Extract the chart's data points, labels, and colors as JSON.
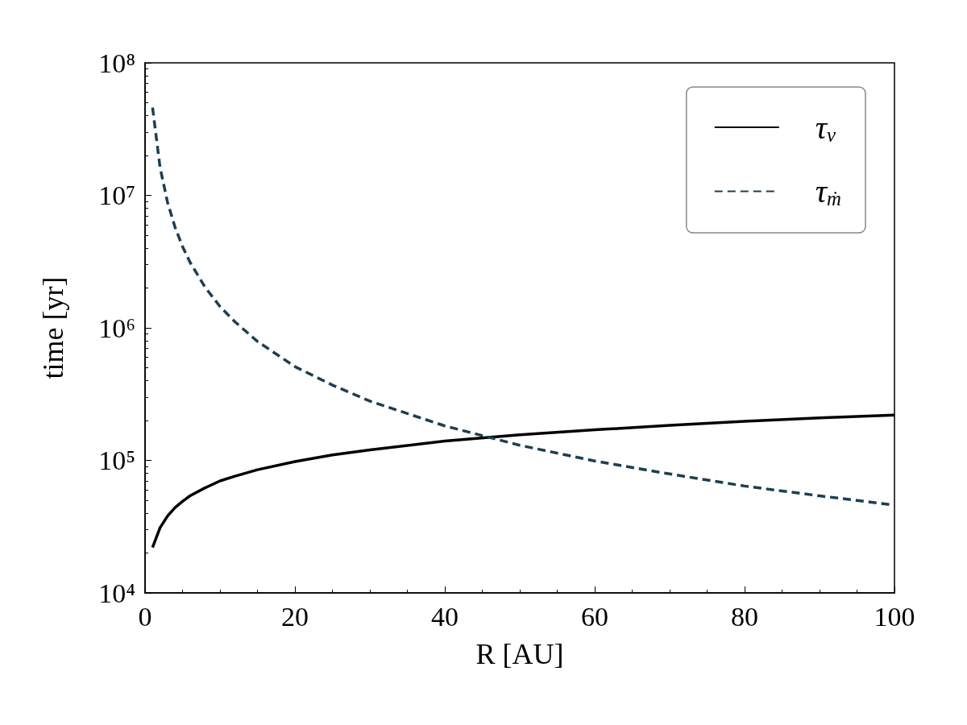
{
  "chart_data": {
    "type": "line",
    "xlabel": "R [AU]",
    "ylabel": "time [yr]",
    "log": "y",
    "grid": false,
    "legend": "top right",
    "marker": "none",
    "x": [
      1,
      2,
      3,
      4,
      5,
      6,
      8,
      10,
      12,
      15,
      20,
      25,
      30,
      40,
      50,
      60,
      70,
      80,
      90,
      100
    ],
    "xlim": [
      0,
      100
    ],
    "xticks": [
      0,
      20,
      40,
      60,
      80,
      100
    ],
    "ylim": [
      10000,
      100000000
    ],
    "yticks": [
      {
        "value": 10000,
        "label": "10⁴"
      },
      {
        "value": 100000,
        "label": "10⁵"
      },
      {
        "value": 1000000,
        "label": "10⁶"
      },
      {
        "value": 10000000,
        "label": "10⁷"
      },
      {
        "value": 100000000,
        "label": "10⁸"
      }
    ],
    "series": [
      {
        "name": "τ$_{ν}$",
        "color": "#000000",
        "line_style": "solid",
        "values": [
          22000,
          31000,
          38000,
          44000,
          49000,
          54000,
          62000,
          70000,
          76000,
          85000,
          98000,
          110000,
          120000,
          140000,
          156000,
          170000,
          184000,
          197000,
          209000,
          220000
        ]
      },
      {
        "name": "τ$_{ṁ}$",
        "color": "#1b3f52",
        "line_style": "dashed",
        "values": [
          46000000,
          16300000,
          8850000,
          5750000,
          4110000,
          3130000,
          2030000,
          1450000,
          1110000,
          790000,
          510000,
          370000,
          280000,
          182000,
          130000,
          99000,
          79000,
          64000,
          54000,
          46000
        ]
      }
    ]
  }
}
